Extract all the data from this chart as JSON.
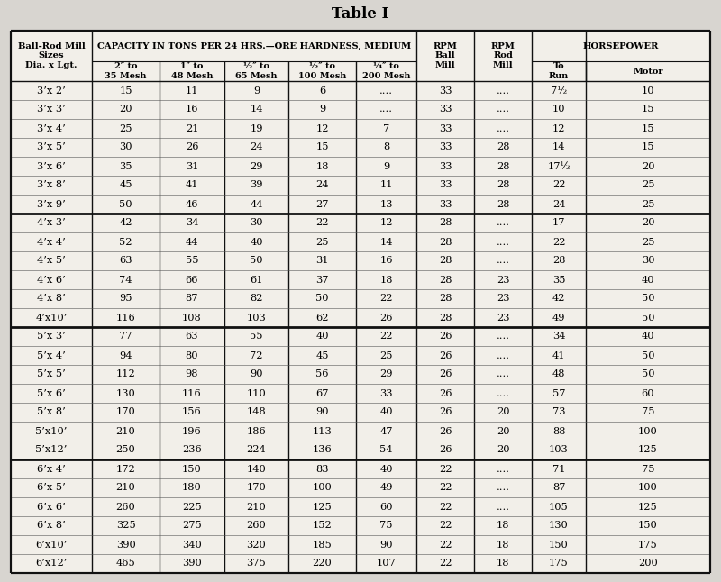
{
  "title": "Table I",
  "background_color": "#e8e8e8",
  "text_color": "#000000",
  "table_bg": "#f0ede8",
  "groups": [
    {
      "rows": [
        [
          "3’x 2’",
          "15",
          "11",
          "9",
          "6",
          "....",
          "33",
          "....",
          "7½",
          "10"
        ],
        [
          "3’x 3’",
          "20",
          "16",
          "14",
          "9",
          "....",
          "33",
          "....",
          "10",
          "15"
        ],
        [
          "3’x 4’",
          "25",
          "21",
          "19",
          "12",
          "7",
          "33",
          "....",
          "12",
          "15"
        ],
        [
          "3’x 5’",
          "30",
          "26",
          "24",
          "15",
          "8",
          "33",
          "28",
          "14",
          "15"
        ],
        [
          "3’x 6’",
          "35",
          "31",
          "29",
          "18",
          "9",
          "33",
          "28",
          "17½",
          "20"
        ],
        [
          "3’x 8’",
          "45",
          "41",
          "39",
          "24",
          "11",
          "33",
          "28",
          "22",
          "25"
        ],
        [
          "3’x 9’",
          "50",
          "46",
          "44",
          "27",
          "13",
          "33",
          "28",
          "24",
          "25"
        ]
      ]
    },
    {
      "rows": [
        [
          "4’x 3’",
          "42",
          "34",
          "30",
          "22",
          "12",
          "28",
          "....",
          "17",
          "20"
        ],
        [
          "4’x 4’",
          "52",
          "44",
          "40",
          "25",
          "14",
          "28",
          "....",
          "22",
          "25"
        ],
        [
          "4’x 5’",
          "63",
          "55",
          "50",
          "31",
          "16",
          "28",
          "....",
          "28",
          "30"
        ],
        [
          "4’x 6’",
          "74",
          "66",
          "61",
          "37",
          "18",
          "28",
          "23",
          "35",
          "40"
        ],
        [
          "4’x 8’",
          "95",
          "87",
          "82",
          "50",
          "22",
          "28",
          "23",
          "42",
          "50"
        ],
        [
          "4’x10’",
          "116",
          "108",
          "103",
          "62",
          "26",
          "28",
          "23",
          "49",
          "50"
        ]
      ]
    },
    {
      "rows": [
        [
          "5’x 3’",
          "77",
          "63",
          "55",
          "40",
          "22",
          "26",
          "....",
          "34",
          "40"
        ],
        [
          "5’x 4’",
          "94",
          "80",
          "72",
          "45",
          "25",
          "26",
          "....",
          "41",
          "50"
        ],
        [
          "5’x 5’",
          "112",
          "98",
          "90",
          "56",
          "29",
          "26",
          "....",
          "48",
          "50"
        ],
        [
          "5’x 6’",
          "130",
          "116",
          "110",
          "67",
          "33",
          "26",
          "....",
          "57",
          "60"
        ],
        [
          "5’x 8’",
          "170",
          "156",
          "148",
          "90",
          "40",
          "26",
          "20",
          "73",
          "75"
        ],
        [
          "5’x10’",
          "210",
          "196",
          "186",
          "113",
          "47",
          "26",
          "20",
          "88",
          "100"
        ],
        [
          "5’x12’",
          "250",
          "236",
          "224",
          "136",
          "54",
          "26",
          "20",
          "103",
          "125"
        ]
      ]
    },
    {
      "rows": [
        [
          "6’x 4’",
          "172",
          "150",
          "140",
          "83",
          "40",
          "22",
          "....",
          "71",
          "75"
        ],
        [
          "6’x 5’",
          "210",
          "180",
          "170",
          "100",
          "49",
          "22",
          "....",
          "87",
          "100"
        ],
        [
          "6’x 6’",
          "260",
          "225",
          "210",
          "125",
          "60",
          "22",
          "....",
          "105",
          "125"
        ],
        [
          "6’x 8’",
          "325",
          "275",
          "260",
          "152",
          "75",
          "22",
          "18",
          "130",
          "150"
        ],
        [
          "6’x10’",
          "390",
          "340",
          "320",
          "185",
          "90",
          "22",
          "18",
          "150",
          "175"
        ],
        [
          "6’x12’",
          "465",
          "390",
          "375",
          "220",
          "107",
          "22",
          "18",
          "175",
          "200"
        ]
      ]
    }
  ]
}
